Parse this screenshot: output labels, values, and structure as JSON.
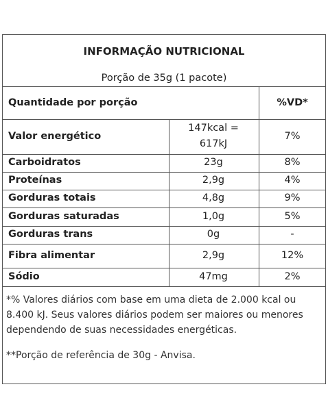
{
  "title": "INFORMAÇÃO NUTRICIONAL",
  "serving": "Porção de 35g (1 pacote)",
  "header": {
    "quantity_label": "Quantidade por porção",
    "dv_label": "%VD*"
  },
  "rows": [
    {
      "name": "Valor energético",
      "amount_line1": "147kcal =",
      "amount_line2": "617kJ",
      "dv": "7%"
    },
    {
      "name": "Carboidratos",
      "amount": "23g",
      "dv": "8%"
    },
    {
      "name": "Proteínas",
      "amount": "2,9g",
      "dv": "4%"
    },
    {
      "name": "Gorduras totais",
      "amount": "4,8g",
      "dv": "9%"
    },
    {
      "name": "Gorduras saturadas",
      "amount": "1,0g",
      "dv": "5%"
    },
    {
      "name": "Gorduras trans",
      "amount": "0g",
      "dv": "-"
    },
    {
      "name": "Fibra alimentar",
      "amount": "2,9g",
      "dv": "12%"
    },
    {
      "name": "Sódio",
      "amount": "47mg",
      "dv": "2%"
    }
  ],
  "footnote": {
    "line1": "*% Valores diários com base em uma dieta de 2.000 kcal ou",
    "line2": "8.400 kJ. Seus valores diários podem ser maiores ou menores",
    "line3": "dependendo de suas necessidades energéticas."
  },
  "reference_note": "**Porção de referência de 30g - Anvisa."
}
